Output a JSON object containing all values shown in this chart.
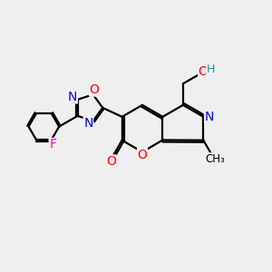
{
  "bg_color": "#efefef",
  "atom_colors": {
    "O": "#ff0000",
    "N": "#0000ff",
    "F": "#ff00cc",
    "H": "#1a9999"
  },
  "lw": 1.6,
  "font_size": 9.5
}
